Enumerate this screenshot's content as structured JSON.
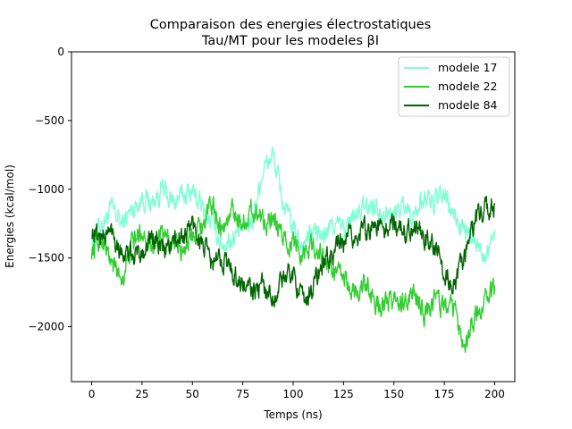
{
  "chart_data": {
    "type": "line",
    "title": "Comparaison des energies électrostatiques",
    "subtitle": "Tau/MT pour les modeles βI",
    "xlabel": "Temps (ns)",
    "ylabel": "Energies (kcal/mol)",
    "xlim": [
      -10,
      210
    ],
    "ylim": [
      -2400,
      0
    ],
    "xticks": [
      0,
      25,
      50,
      75,
      100,
      125,
      150,
      175,
      200
    ],
    "yticks": [
      0,
      -500,
      -1000,
      -1500,
      -2000
    ],
    "xtick_labels": [
      "0",
      "25",
      "50",
      "75",
      "100",
      "125",
      "150",
      "175",
      "200"
    ],
    "ytick_labels": [
      "0",
      "−500",
      "−1000",
      "−1500",
      "−2000"
    ],
    "grid": false,
    "legend_position": "top-right",
    "series": [
      {
        "name": "modele 17",
        "color": "#7fffd4",
        "x": [
          0,
          5,
          10,
          15,
          20,
          25,
          30,
          35,
          40,
          45,
          50,
          55,
          60,
          65,
          70,
          75,
          80,
          85,
          90,
          95,
          100,
          105,
          110,
          115,
          120,
          125,
          130,
          135,
          140,
          145,
          150,
          155,
          160,
          165,
          170,
          175,
          180,
          185,
          190,
          195,
          200
        ],
        "y": [
          -1350,
          -1250,
          -1150,
          -1250,
          -1150,
          -1050,
          -1100,
          -1000,
          -1100,
          -1050,
          -1000,
          -1150,
          -1250,
          -1400,
          -1350,
          -1300,
          -1200,
          -850,
          -750,
          -1100,
          -1300,
          -1400,
          -1300,
          -1350,
          -1250,
          -1300,
          -1200,
          -1150,
          -1100,
          -1150,
          -1200,
          -1100,
          -1200,
          -1050,
          -1100,
          -1050,
          -1200,
          -1300,
          -1400,
          -1450,
          -1300
        ]
      },
      {
        "name": "modele 22",
        "color": "#32cd32",
        "x": [
          0,
          5,
          10,
          15,
          20,
          25,
          30,
          35,
          40,
          45,
          50,
          55,
          60,
          65,
          70,
          75,
          80,
          85,
          90,
          95,
          100,
          105,
          110,
          115,
          120,
          125,
          130,
          135,
          140,
          145,
          150,
          155,
          160,
          165,
          170,
          175,
          180,
          185,
          190,
          195,
          200
        ],
        "y": [
          -1450,
          -1350,
          -1550,
          -1650,
          -1400,
          -1300,
          -1400,
          -1350,
          -1400,
          -1450,
          -1300,
          -1250,
          -1100,
          -1300,
          -1150,
          -1250,
          -1150,
          -1200,
          -1250,
          -1350,
          -1400,
          -1450,
          -1400,
          -1500,
          -1600,
          -1650,
          -1750,
          -1700,
          -1800,
          -1850,
          -1800,
          -1850,
          -1750,
          -1900,
          -1800,
          -1850,
          -1900,
          -2100,
          -1950,
          -1800,
          -1700
        ]
      },
      {
        "name": "modele 84",
        "color": "#006400",
        "x": [
          0,
          5,
          10,
          15,
          20,
          25,
          30,
          35,
          40,
          45,
          50,
          55,
          60,
          65,
          70,
          75,
          80,
          85,
          90,
          95,
          100,
          105,
          110,
          115,
          120,
          125,
          130,
          135,
          140,
          145,
          150,
          155,
          160,
          165,
          170,
          175,
          180,
          185,
          190,
          195,
          200
        ],
        "y": [
          -1300,
          -1350,
          -1300,
          -1450,
          -1500,
          -1450,
          -1350,
          -1450,
          -1400,
          -1350,
          -1250,
          -1400,
          -1550,
          -1500,
          -1600,
          -1700,
          -1750,
          -1700,
          -1800,
          -1650,
          -1600,
          -1850,
          -1700,
          -1550,
          -1450,
          -1400,
          -1350,
          -1300,
          -1250,
          -1300,
          -1250,
          -1300,
          -1250,
          -1350,
          -1400,
          -1600,
          -1700,
          -1500,
          -1250,
          -1150,
          -1100
        ]
      }
    ]
  }
}
